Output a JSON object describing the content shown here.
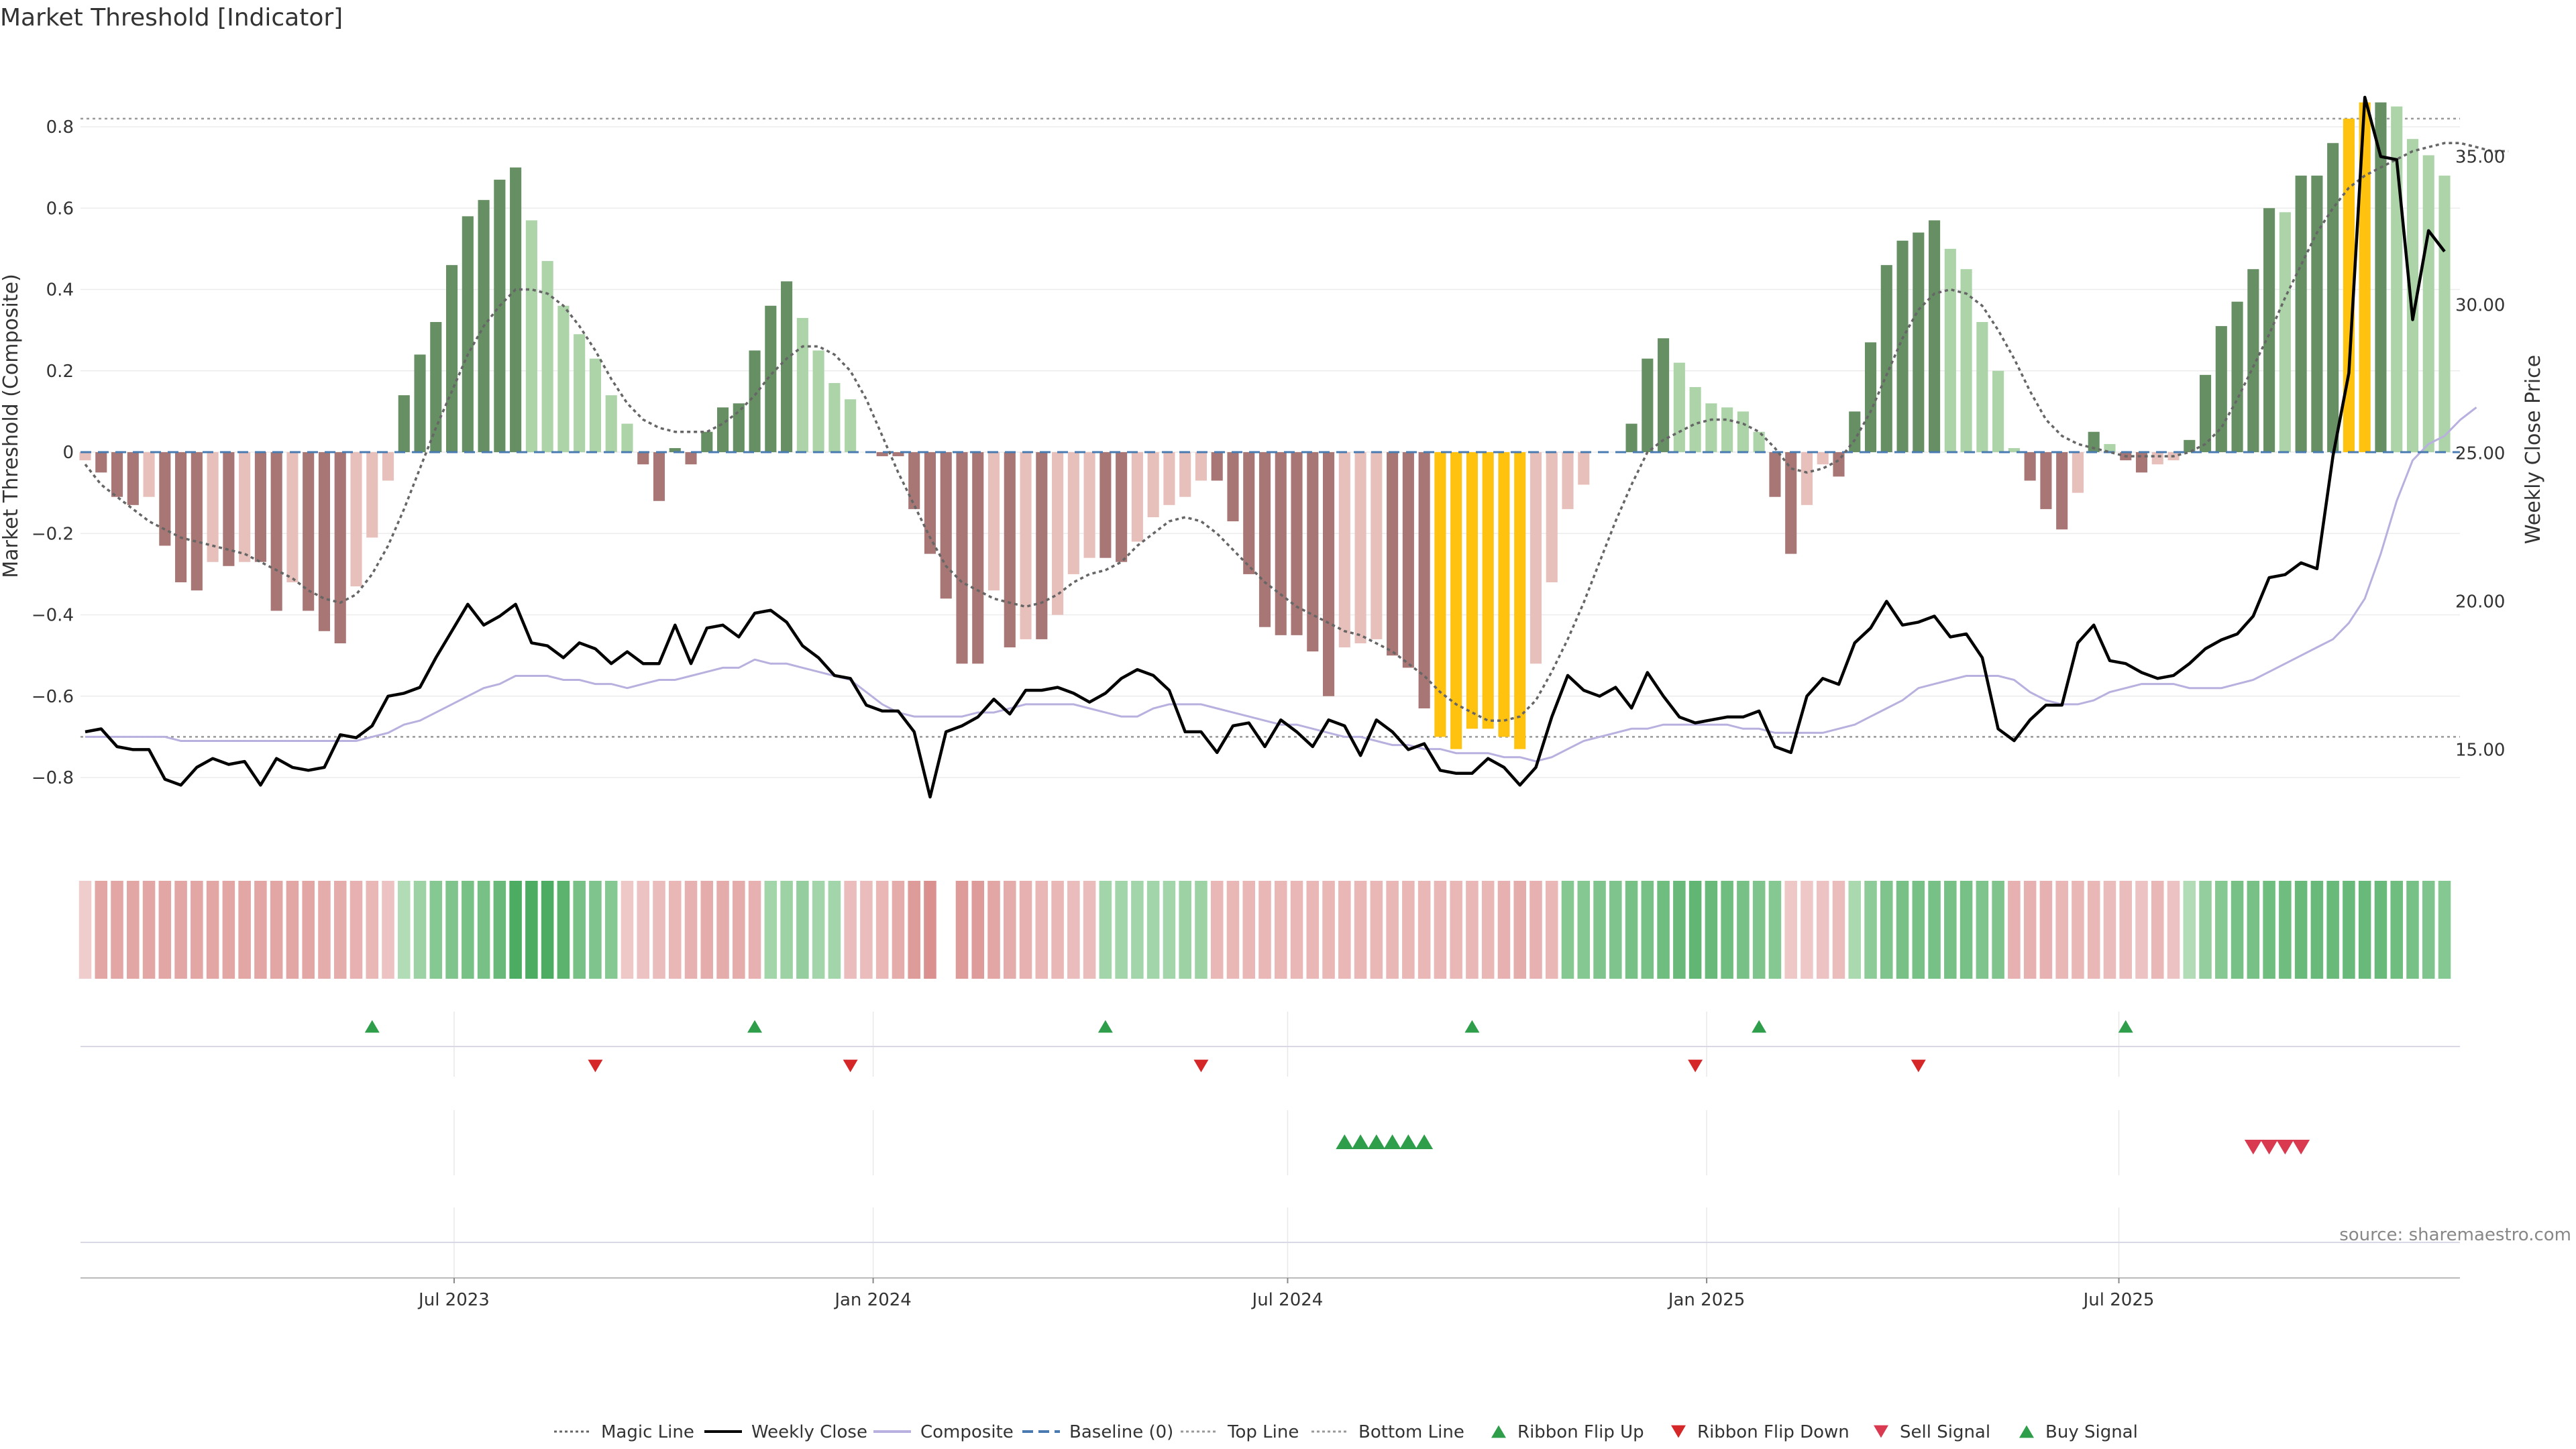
{
  "page": {
    "title": "Market Threshold [Indicator]",
    "source": "source: sharemaestro.com"
  },
  "chart_data": {
    "type": "bar",
    "title": "Market Threshold [Indicator]",
    "ylabel": "Market Threshold (Composite)",
    "y2label": "Weekly Close Price",
    "ylim": [
      -0.95,
      0.96
    ],
    "y2lim": [
      12.0,
      38.2
    ],
    "yticks": [
      -0.8,
      -0.6,
      -0.4,
      -0.2,
      0,
      0.2,
      0.4,
      0.6,
      0.8
    ],
    "ytick_labels": [
      "−0.8",
      "−0.6",
      "−0.4",
      "−0.2",
      "0",
      "0.2",
      "0.4",
      "0.6",
      "0.8"
    ],
    "y2ticks": [
      15,
      20,
      25,
      30,
      35
    ],
    "y2tick_labels": [
      "15.00",
      "20.00",
      "25.00",
      "30.00",
      "35.00"
    ],
    "xticks": [
      "2023-07-01",
      "2024-01-01",
      "2024-07-01",
      "2025-01-01",
      "2025-07-01"
    ],
    "xtick_labels": [
      "Jul 2023",
      "Jan 2024",
      "Jul 2024",
      "Jan 2025",
      "Jul 2025"
    ],
    "start_date": "2023-01-20",
    "top_line": 0.82,
    "bottom_line": -0.7,
    "grid": true,
    "legend_position": "bottom-center",
    "colors": {
      "strong_pos": "#678f64",
      "weak_pos": "#acd4a8",
      "strong_neg": "#a87775",
      "weak_neg": "#e8c0bb",
      "extreme": "#ffc20e",
      "close": "#000000",
      "composite": "#b8b0de",
      "magic": "#666666",
      "baseline": "#4a7bb0",
      "flip_up": "#2e9e4a",
      "flip_down": "#d62728",
      "sell": "#d93a50",
      "buy": "#2e9e4a"
    },
    "series": [
      {
        "name": "Composite",
        "kind": "bar",
        "values": [
          -0.02,
          -0.05,
          -0.11,
          -0.13,
          -0.11,
          -0.23,
          -0.32,
          -0.34,
          -0.27,
          -0.28,
          -0.27,
          -0.27,
          -0.39,
          -0.32,
          -0.39,
          -0.44,
          -0.47,
          -0.33,
          -0.21,
          -0.07,
          0.14,
          0.24,
          0.32,
          0.46,
          0.58,
          0.62,
          0.67,
          0.7,
          0.57,
          0.47,
          0.36,
          0.29,
          0.23,
          0.14,
          0.07,
          -0.03,
          -0.12,
          0.01,
          -0.03,
          0.05,
          0.11,
          0.12,
          0.25,
          0.36,
          0.42,
          0.33,
          0.25,
          0.17,
          0.13,
          0.0,
          -0.01,
          -0.01,
          -0.14,
          -0.25,
          -0.36,
          -0.52,
          -0.52,
          -0.34,
          -0.48,
          -0.46,
          -0.46,
          -0.4,
          -0.3,
          -0.26,
          -0.26,
          -0.27,
          -0.22,
          -0.16,
          -0.13,
          -0.11,
          -0.07,
          -0.07,
          -0.17,
          -0.3,
          -0.43,
          -0.45,
          -0.45,
          -0.49,
          -0.6,
          -0.48,
          -0.47,
          -0.46,
          -0.5,
          -0.53,
          -0.63,
          -0.7,
          -0.73,
          -0.68,
          -0.68,
          -0.7,
          -0.73,
          -0.52,
          -0.32,
          -0.14,
          -0.08,
          0.0,
          0.0,
          0.07,
          0.23,
          0.28,
          0.22,
          0.16,
          0.12,
          0.11,
          0.1,
          0.05,
          -0.11,
          -0.25,
          -0.13,
          -0.03,
          -0.06,
          0.1,
          0.27,
          0.46,
          0.52,
          0.54,
          0.57,
          0.5,
          0.45,
          0.32,
          0.2,
          0.01,
          -0.07,
          -0.14,
          -0.19,
          -0.1,
          0.05,
          0.02,
          -0.02,
          -0.05,
          -0.03,
          -0.02,
          0.03,
          0.19,
          0.31,
          0.37,
          0.45,
          0.6,
          0.59,
          0.68,
          0.68,
          0.76,
          0.82,
          0.86,
          0.86,
          0.85,
          0.77,
          0.73,
          0.68
        ]
      },
      {
        "name": "Weekly Close",
        "kind": "line",
        "values": [
          15.6,
          15.7,
          15.1,
          15.0,
          15.0,
          14.0,
          13.8,
          14.4,
          14.7,
          14.5,
          14.6,
          13.8,
          14.7,
          14.4,
          14.3,
          14.4,
          15.5,
          15.4,
          15.8,
          16.8,
          16.9,
          17.1,
          18.1,
          19.0,
          19.9,
          19.2,
          19.5,
          19.9,
          18.6,
          18.5,
          18.1,
          18.6,
          18.4,
          17.9,
          18.3,
          17.9,
          17.9,
          19.2,
          17.9,
          19.1,
          19.2,
          18.8,
          19.6,
          19.7,
          19.3,
          18.5,
          18.1,
          17.5,
          17.4,
          16.5,
          16.3,
          16.3,
          15.6,
          13.4,
          15.6,
          15.8,
          16.1,
          16.7,
          16.2,
          17.0,
          17.0,
          17.1,
          16.9,
          16.6,
          16.9,
          17.4,
          17.7,
          17.5,
          17.0,
          15.6,
          15.6,
          14.9,
          15.8,
          15.9,
          15.1,
          16.0,
          15.6,
          15.1,
          16.0,
          15.8,
          14.8,
          16.0,
          15.6,
          15.0,
          15.2,
          14.3,
          14.2,
          14.2,
          14.7,
          14.4,
          13.8,
          14.4,
          16.1,
          17.5,
          17.0,
          16.8,
          17.1,
          16.4,
          17.6,
          16.8,
          16.1,
          15.9,
          16.0,
          16.1,
          16.1,
          16.3,
          15.1,
          14.9,
          16.8,
          17.4,
          17.2,
          18.6,
          19.1,
          20.0,
          19.2,
          19.3,
          19.5,
          18.8,
          18.9,
          18.1,
          15.7,
          15.3,
          16.0,
          16.5,
          16.5,
          18.6,
          19.2,
          18.0,
          17.9,
          17.6,
          17.4,
          17.5,
          17.9,
          18.4,
          18.7,
          18.9,
          19.5,
          20.8,
          20.9,
          21.3,
          21.1,
          24.9,
          27.7,
          37.0,
          35.0,
          34.9,
          29.5,
          32.5,
          31.8
        ]
      },
      {
        "name": "Composite",
        "kind": "line",
        "values": [
          -0.7,
          -0.7,
          -0.7,
          -0.7,
          -0.7,
          -0.7,
          -0.71,
          -0.71,
          -0.71,
          -0.71,
          -0.71,
          -0.71,
          -0.71,
          -0.71,
          -0.71,
          -0.71,
          -0.71,
          -0.71,
          -0.7,
          -0.69,
          -0.67,
          -0.66,
          -0.64,
          -0.62,
          -0.6,
          -0.58,
          -0.57,
          -0.55,
          -0.55,
          -0.55,
          -0.56,
          -0.56,
          -0.57,
          -0.57,
          -0.58,
          -0.57,
          -0.56,
          -0.56,
          -0.55,
          -0.54,
          -0.53,
          -0.53,
          -0.51,
          -0.52,
          -0.52,
          -0.53,
          -0.54,
          -0.55,
          -0.56,
          -0.59,
          -0.62,
          -0.64,
          -0.65,
          -0.65,
          -0.65,
          -0.65,
          -0.64,
          -0.64,
          -0.63,
          -0.62,
          -0.62,
          -0.62,
          -0.62,
          -0.63,
          -0.64,
          -0.65,
          -0.65,
          -0.63,
          -0.62,
          -0.62,
          -0.62,
          -0.63,
          -0.64,
          -0.65,
          -0.66,
          -0.67,
          -0.67,
          -0.68,
          -0.69,
          -0.7,
          -0.7,
          -0.71,
          -0.72,
          -0.72,
          -0.73,
          -0.73,
          -0.74,
          -0.74,
          -0.74,
          -0.75,
          -0.75,
          -0.76,
          -0.75,
          -0.73,
          -0.71,
          -0.7,
          -0.69,
          -0.68,
          -0.68,
          -0.67,
          -0.67,
          -0.67,
          -0.67,
          -0.67,
          -0.68,
          -0.68,
          -0.69,
          -0.69,
          -0.69,
          -0.69,
          -0.68,
          -0.67,
          -0.65,
          -0.63,
          -0.61,
          -0.58,
          -0.57,
          -0.56,
          -0.55,
          -0.55,
          -0.55,
          -0.56,
          -0.59,
          -0.61,
          -0.62,
          -0.62,
          -0.61,
          -0.59,
          -0.58,
          -0.57,
          -0.57,
          -0.57,
          -0.58,
          -0.58,
          -0.58,
          -0.57,
          -0.56,
          -0.54,
          -0.52,
          -0.5,
          -0.48,
          -0.46,
          -0.42,
          -0.36,
          -0.25,
          -0.12,
          -0.02,
          0.02,
          0.04,
          0.08,
          0.11
        ]
      },
      {
        "name": "Magic Line",
        "kind": "line",
        "values": [
          -0.03,
          -0.08,
          -0.11,
          -0.14,
          -0.17,
          -0.19,
          -0.21,
          -0.22,
          -0.23,
          -0.24,
          -0.25,
          -0.27,
          -0.29,
          -0.31,
          -0.34,
          -0.36,
          -0.37,
          -0.35,
          -0.3,
          -0.23,
          -0.14,
          -0.04,
          0.06,
          0.15,
          0.24,
          0.31,
          0.36,
          0.4,
          0.4,
          0.39,
          0.36,
          0.31,
          0.25,
          0.18,
          0.12,
          0.08,
          0.06,
          0.05,
          0.05,
          0.05,
          0.07,
          0.1,
          0.14,
          0.19,
          0.23,
          0.26,
          0.26,
          0.24,
          0.2,
          0.13,
          0.04,
          -0.05,
          -0.13,
          -0.21,
          -0.28,
          -0.32,
          -0.34,
          -0.36,
          -0.37,
          -0.38,
          -0.37,
          -0.35,
          -0.32,
          -0.3,
          -0.29,
          -0.27,
          -0.23,
          -0.2,
          -0.17,
          -0.16,
          -0.17,
          -0.2,
          -0.24,
          -0.28,
          -0.32,
          -0.35,
          -0.38,
          -0.4,
          -0.42,
          -0.44,
          -0.45,
          -0.47,
          -0.49,
          -0.52,
          -0.55,
          -0.59,
          -0.62,
          -0.64,
          -0.66,
          -0.66,
          -0.65,
          -0.61,
          -0.54,
          -0.46,
          -0.37,
          -0.27,
          -0.17,
          -0.08,
          0.0,
          0.03,
          0.05,
          0.07,
          0.08,
          0.08,
          0.07,
          0.05,
          0.01,
          -0.04,
          -0.05,
          -0.04,
          -0.02,
          0.03,
          0.1,
          0.19,
          0.28,
          0.35,
          0.39,
          0.4,
          0.39,
          0.36,
          0.3,
          0.23,
          0.15,
          0.08,
          0.04,
          0.02,
          0.01,
          0.0,
          -0.01,
          -0.01,
          -0.01,
          -0.01,
          0.0,
          0.02,
          0.06,
          0.13,
          0.21,
          0.29,
          0.38,
          0.46,
          0.54,
          0.6,
          0.65,
          0.68,
          0.7,
          0.72,
          0.74,
          0.75,
          0.76,
          0.76,
          0.75,
          0.74,
          0.74
        ]
      }
    ],
    "ribbon": {
      "levels": [
        -0.15,
        -0.5,
        -0.5,
        -0.5,
        -0.5,
        -0.5,
        -0.5,
        -0.5,
        -0.5,
        -0.5,
        -0.5,
        -0.5,
        -0.5,
        -0.5,
        -0.5,
        -0.45,
        -0.45,
        -0.4,
        -0.35,
        -0.25,
        0.2,
        0.35,
        0.5,
        0.55,
        0.6,
        0.6,
        0.7,
        0.9,
        0.9,
        0.9,
        0.8,
        0.6,
        0.55,
        0.5,
        -0.2,
        -0.25,
        -0.3,
        -0.35,
        -0.4,
        -0.45,
        -0.45,
        -0.45,
        -0.4,
        0.3,
        0.35,
        0.4,
        0.3,
        0.3,
        -0.3,
        -0.3,
        -0.35,
        -0.45,
        -0.6,
        -0.7,
        null,
        -0.6,
        -0.6,
        -0.5,
        -0.45,
        -0.4,
        -0.35,
        -0.35,
        -0.3,
        -0.3,
        0.3,
        0.3,
        0.3,
        0.3,
        0.3,
        0.35,
        0.35,
        -0.35,
        -0.35,
        -0.35,
        -0.35,
        -0.35,
        -0.35,
        -0.35,
        -0.35,
        -0.35,
        -0.35,
        -0.35,
        -0.35,
        -0.35,
        -0.35,
        -0.35,
        -0.35,
        -0.35,
        -0.35,
        -0.4,
        -0.45,
        -0.4,
        -0.35,
        0.5,
        0.5,
        0.55,
        0.55,
        0.6,
        0.6,
        0.65,
        0.7,
        0.75,
        0.7,
        0.65,
        0.6,
        0.55,
        0.5,
        -0.2,
        -0.2,
        -0.25,
        -0.3,
        0.25,
        0.45,
        0.55,
        0.6,
        0.6,
        0.6,
        0.6,
        0.6,
        0.55,
        0.55,
        -0.4,
        -0.4,
        -0.4,
        -0.35,
        -0.35,
        -0.35,
        -0.3,
        -0.3,
        -0.25,
        -0.35,
        -0.25,
        0.2,
        0.4,
        0.5,
        0.6,
        0.6,
        0.65,
        0.65,
        0.7,
        0.7,
        0.7,
        0.7,
        0.7,
        0.7,
        0.65,
        0.6,
        0.55,
        0.5
      ]
    },
    "flip_up_idx": [
      18,
      42,
      64,
      87,
      105,
      128
    ],
    "flip_down_idx": [
      32,
      48,
      70,
      101,
      115
    ],
    "buy_signal_idx": [
      79,
      80,
      81,
      82,
      83,
      84
    ],
    "sell_signal_idx": [
      136,
      137,
      138,
      139
    ],
    "legend": [
      "Magic Line",
      "Weekly Close",
      "Composite",
      "Baseline (0)",
      "Top Line",
      "Bottom Line",
      "Ribbon Flip Up",
      "Ribbon Flip Down",
      "Sell Signal",
      "Buy Signal"
    ]
  }
}
